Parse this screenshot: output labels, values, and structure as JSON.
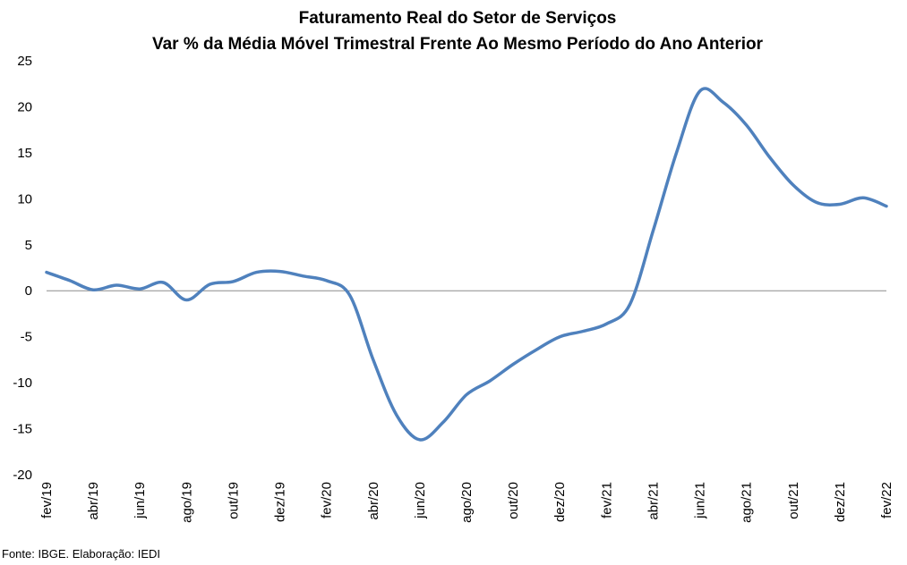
{
  "chart_data": {
    "type": "line",
    "title": "Faturamento Real do Setor de Serviços",
    "subtitle": "Var % da Média Móvel Trimestral Frente Ao Mesmo Período do Ano Anterior",
    "xlabel": "",
    "ylabel": "",
    "ylim": [
      -20,
      25
    ],
    "yticks": [
      "25",
      "20",
      "15",
      "10",
      "5",
      "0",
      "-5",
      "-10",
      "-15",
      "-20"
    ],
    "x_tick_labels": [
      "fev/19",
      "abr/19",
      "jun/19",
      "ago/19",
      "out/19",
      "dez/19",
      "fev/20",
      "abr/20",
      "jun/20",
      "ago/20",
      "out/20",
      "dez/20",
      "fev/21",
      "abr/21",
      "jun/21",
      "ago/21",
      "out/21",
      "dez/21",
      "fev/22"
    ],
    "x": [
      "fev/19",
      "mar/19",
      "abr/19",
      "mai/19",
      "jun/19",
      "jul/19",
      "ago/19",
      "set/19",
      "out/19",
      "nov/19",
      "dez/19",
      "jan/20",
      "fev/20",
      "mar/20",
      "abr/20",
      "mai/20",
      "jun/20",
      "jul/20",
      "ago/20",
      "set/20",
      "out/20",
      "nov/20",
      "dez/20",
      "jan/21",
      "fev/21",
      "mar/21",
      "abr/21",
      "mai/21",
      "jun/21",
      "jul/21",
      "ago/21",
      "set/21",
      "out/21",
      "nov/21",
      "dez/21",
      "jan/22",
      "fev/22"
    ],
    "series": [
      {
        "name": "",
        "color": "#4f81bd",
        "values": [
          2.0,
          1.1,
          0.1,
          0.6,
          0.2,
          0.9,
          -1.0,
          0.7,
          1.0,
          2.0,
          2.1,
          1.6,
          1.1,
          -0.5,
          -7.5,
          -13.5,
          -16.2,
          -14.3,
          -11.3,
          -9.8,
          -8.0,
          -6.4,
          -5.0,
          -4.4,
          -3.6,
          -1.5,
          6.5,
          15.0,
          21.7,
          20.5,
          18.0,
          14.5,
          11.5,
          9.6,
          9.4,
          10.1,
          9.2
        ]
      }
    ],
    "grid": false,
    "zero_line": true,
    "legend": "none"
  },
  "footer": {
    "source": "Fonte: IBGE. Elaboração: IEDI"
  }
}
